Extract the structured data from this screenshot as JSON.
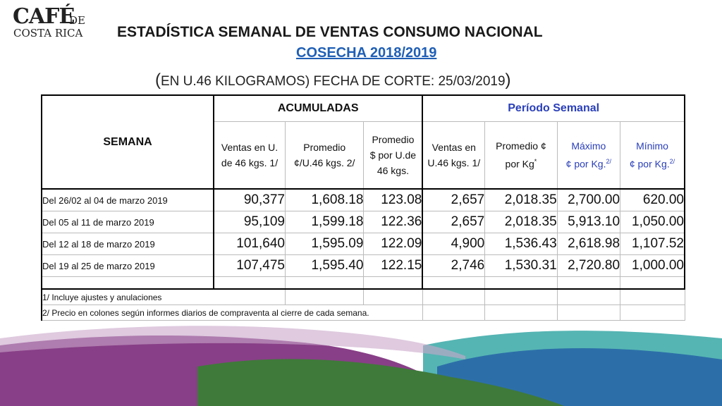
{
  "logo": {
    "line1": "CAFÉ",
    "line1b": "DE",
    "line2": "COSTA RICA"
  },
  "title": "ESTADÍSTICA SEMANAL DE VENTAS CONSUMO NACIONAL",
  "subtitle": "COSECHA 2018/2019",
  "unit_line": {
    "open": "(",
    "text": "EN U.46 KILOGRAMOS) FECHA DE CORTE: 25/03/2019",
    "close": ")"
  },
  "table": {
    "semana_header": "SEMANA",
    "group_acumuladas": "ACUMULADAS",
    "group_periodo": "Período Semanal",
    "columns": {
      "ventas_acum_1": "Ventas en U.",
      "ventas_acum_2": "de 46 kgs. 1/",
      "prom_acum_1": "Promedio",
      "prom_acum_2": "¢/U.46 kgs. 2/",
      "prom_usd_1": "Promedio",
      "prom_usd_2": "$ por U.de",
      "prom_usd_3": "46 kgs.",
      "ventas_sem_1": "Ventas en",
      "ventas_sem_2": "U.46 kgs. 1/",
      "prom_sem_1": "Promedio  ¢",
      "prom_sem_2": "por Kg",
      "prom_sem_sup": "*",
      "max_1": "Máximo",
      "max_2": "¢ por Kg.",
      "max_sup": "2/",
      "min_1": "Mínimo",
      "min_2": "¢ por Kg.",
      "min_sup": "2/"
    },
    "rows": [
      {
        "semana": "Del 26/02  al 04 de marzo 2019",
        "ventas_acum": "90,377",
        "prom_acum": "1,608.18",
        "prom_usd": "123.08",
        "ventas_sem": "2,657",
        "prom_sem": "2,018.35",
        "max": "2,700.00",
        "min": "620.00"
      },
      {
        "semana": "Del 05 al 11 de marzo 2019",
        "ventas_acum": "95,109",
        "prom_acum": "1,599.18",
        "prom_usd": "122.36",
        "ventas_sem": "2,657",
        "prom_sem": "2,018.35",
        "max": "5,913.10",
        "min": "1,050.00"
      },
      {
        "semana": "Del 12 al 18 de marzo 2019",
        "ventas_acum": "101,640",
        "prom_acum": "1,595.09",
        "prom_usd": "122.09",
        "ventas_sem": "4,900",
        "prom_sem": "1,536.43",
        "max": "2,618.98",
        "min": "1,107.52"
      },
      {
        "semana": "Del 19 al 25 de marzo 2019",
        "ventas_acum": "107,475",
        "prom_acum": "1,595.40",
        "prom_usd": "122.15",
        "ventas_sem": "2,746",
        "prom_sem": "1,530.31",
        "max": "2,720.80",
        "min": "1,000.00"
      }
    ],
    "notes": [
      "1/ Incluye  ajustes y anulaciones",
      "2/ Precio en colones según informes diarios de compraventa al cierre de cada semana."
    ]
  },
  "colors": {
    "title_blue": "#1f5fb5",
    "header_blue": "#2a3fb8",
    "wave_purple": "#7b2a7a",
    "wave_blue": "#2c6fa8",
    "wave_green": "#3f7a3a",
    "wave_teal": "#37a8a6"
  }
}
